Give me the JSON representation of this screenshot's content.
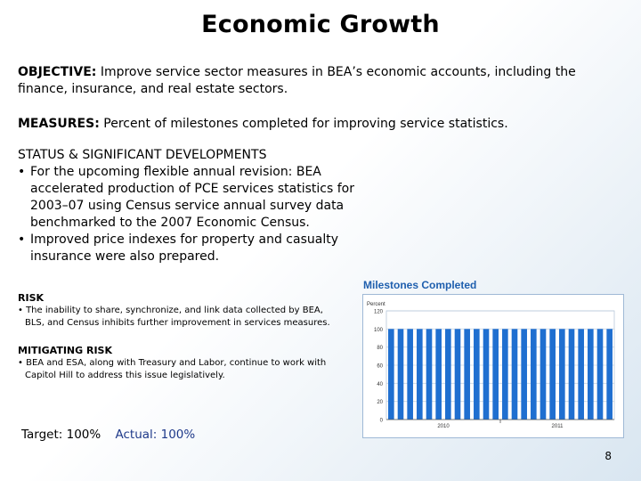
{
  "title": "Economic Growth",
  "objective": {
    "label": "OBJECTIVE:",
    "text": "Improve service sector measures in BEA’s economic accounts, including the finance, insurance, and real estate sectors."
  },
  "measures": {
    "label": "MEASURES:",
    "text": "Percent of milestones completed for improving service statistics."
  },
  "status": {
    "heading": "STATUS & SIGNIFICANT DEVELOPMENTS",
    "bullets": [
      "For the upcoming flexible annual revision: BEA accelerated production of PCE services statistics for 2003–07 using Census service annual survey data benchmarked to the 2007 Economic Census.",
      "Improved price indexes for property and casualty insurance were also prepared."
    ]
  },
  "risk": {
    "heading": "RISK",
    "bullet": "The inability to share, synchronize, and link data collected by BEA, BLS, and Census inhibits further improvement in services measures."
  },
  "mitigating": {
    "heading": "MITIGATING RISK",
    "bullet": "BEA and ESA, along with Treasury and Labor, continue to work with Capitol Hill to address this issue legislatively."
  },
  "target": {
    "label": "Target: 100%",
    "actual": "Actual: 100%"
  },
  "page_number": "8",
  "colors": {
    "bar": "#1f6fd0",
    "chart_title": "#1f5fae",
    "frame": "#9fb9d6"
  },
  "chart_data": {
    "type": "bar",
    "title": "Milestones Completed",
    "ylabel": "Percent",
    "ylim": [
      0,
      120
    ],
    "yticks": [
      0,
      20,
      40,
      60,
      80,
      100,
      120
    ],
    "x_labels": [
      "2010",
      "2011"
    ],
    "values": [
      100,
      100,
      100,
      100,
      100,
      100,
      100,
      100,
      100,
      100,
      100,
      100,
      100,
      100,
      100,
      100,
      100,
      100,
      100,
      100,
      100,
      100,
      100,
      100
    ],
    "grid": true
  }
}
